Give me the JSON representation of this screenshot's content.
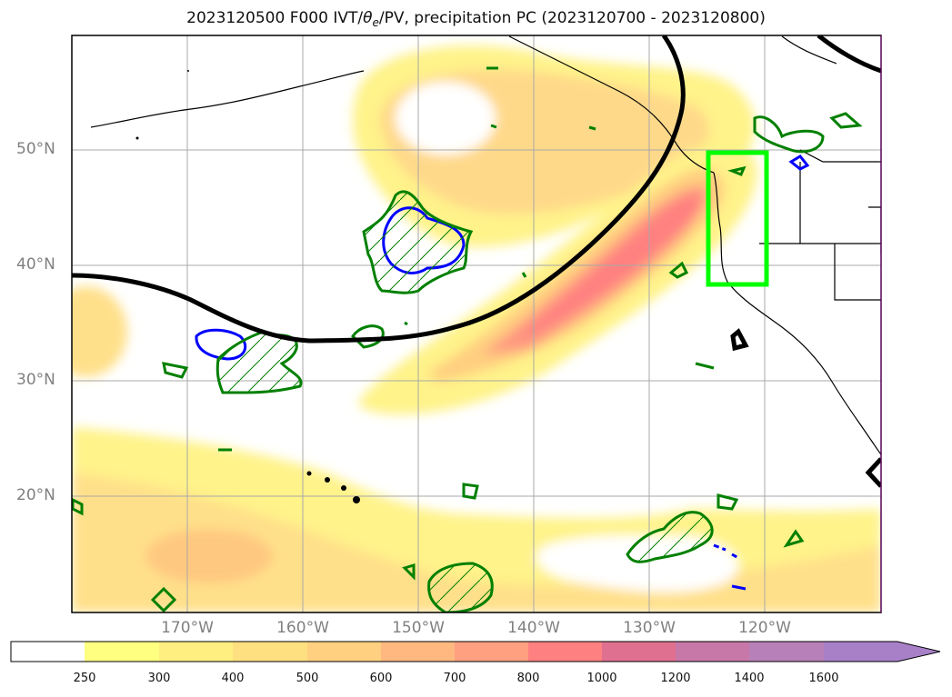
{
  "title": {
    "prefix": "2023120500 F000 IVT/",
    "theta": "θ",
    "theta_sub": "e",
    "suffix": "/PV, precipitation PC (2023120700 - 2023120800)"
  },
  "map": {
    "lat_labels": [
      "50°N",
      "40°N",
      "30°N",
      "20°N"
    ],
    "lon_labels": [
      "170°W",
      "160°W",
      "150°W",
      "140°W",
      "130°W",
      "120°W"
    ],
    "grid": true,
    "colors": {
      "ivt_fill_low": "#ffff80",
      "ivt_fill_mid": "#ffd580",
      "ivt_fill_high": "#ff8080",
      "theta_e_contour": "#000000",
      "pv_positive_contour": "#008000",
      "pv_negative_contour": "#0000ff",
      "highlight_box": "#00ff00",
      "coastline": "#000000"
    }
  },
  "colorbar": {
    "ticks": [
      "250",
      "300",
      "400",
      "500",
      "600",
      "700",
      "800",
      "1000",
      "1200",
      "1400",
      "1600"
    ],
    "colors": [
      "#ffffff",
      "#ffff80",
      "#fff080",
      "#ffe080",
      "#ffd080",
      "#ffb080",
      "#ffa080",
      "#ff8080",
      "#e07090",
      "#c080b0",
      "#b080c0",
      "#a080c8"
    ],
    "extend": "max"
  }
}
